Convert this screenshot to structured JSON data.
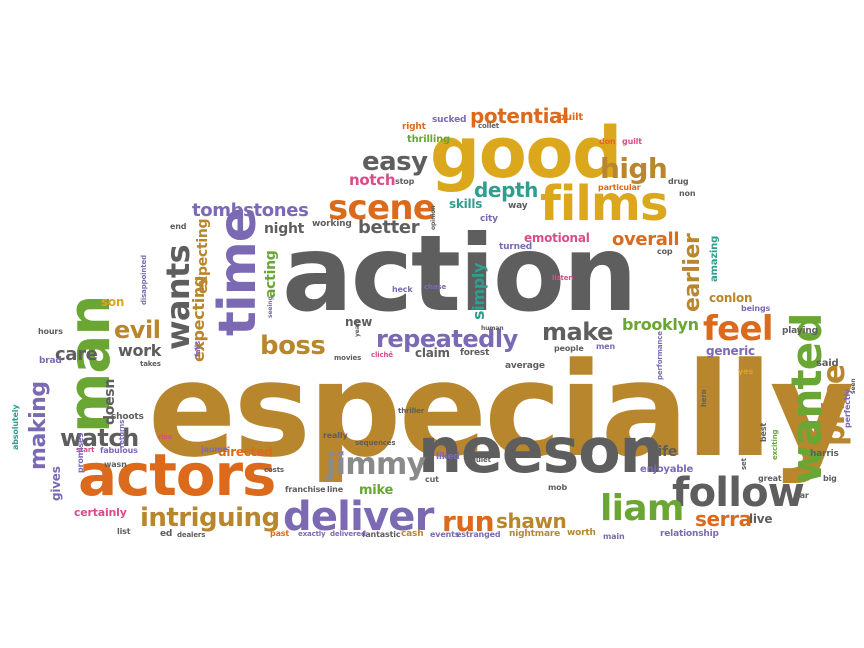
{
  "words": {
    "especially": "especially",
    "action": "action",
    "good": "good",
    "neeson": "neeson",
    "actors": "actors",
    "films": "films",
    "man": "man",
    "time": "time",
    "wanted": "wanted",
    "deliver": "deliver",
    "follow": "follow",
    "scene": "scene",
    "feel": "feel",
    "jimmy": "jimmy",
    "intriguing": "intriguing",
    "liam": "liam",
    "price": "price",
    "repeatedly": "repeatedly",
    "easy": "easy",
    "high": "high",
    "potential": "potential",
    "wants": "wants",
    "boss": "boss",
    "run": "run",
    "shawn": "shawn",
    "make": "make",
    "watch": "watch",
    "evil": "evil",
    "tombstones": "tombstones",
    "depth": "depth",
    "earlier": "earlier",
    "brooklyn": "brooklyn",
    "overall": "overall",
    "making": "making",
    "better": "better",
    "notch": "notch",
    "serra": "serra",
    "care": "care",
    "work": "work",
    "doesn": "doesn",
    "expecting1": "expecting",
    "expecting2": "expecting",
    "night": "night",
    "acting": "acting",
    "simply": "simply",
    "skills": "skills",
    "emotional": "emotional",
    "generic": "generic",
    "conlon": "conlon",
    "directed": "directed",
    "new": "new",
    "claim": "claim",
    "mike": "mike",
    "life": "life",
    "live": "live",
    "son": "son",
    "gives": "gives",
    "certainly": "certainly",
    "amazing": "amazing",
    "thrilling": "thrilling",
    "sucked": "sucked",
    "built": "built",
    "right": "right",
    "stop": "stop",
    "way": "way",
    "city": "city",
    "turned": "turned",
    "heck": "heck",
    "chase": "chase",
    "people": "people",
    "men": "men",
    "hero": "hero",
    "playing": "playing",
    "said": "said",
    "perfectly": "perfectly",
    "harris": "harris",
    "big": "big",
    "best": "best",
    "exciting": "exciting",
    "great": "great",
    "set": "set",
    "car": "car",
    "yes": "yes",
    "enjoyable": "enjoyable",
    "relationship": "relationship",
    "main": "main",
    "worth": "worth",
    "nightmare": "nightmare",
    "estranged": "estranged",
    "events": "events",
    "cash": "cash",
    "fantastic": "fantastic",
    "delivered": "delivered",
    "exactly": "exactly",
    "past": "past",
    "dealers": "dealers",
    "ed": "ed",
    "list": "list",
    "franchise": "franchise",
    "line": "line",
    "cut": "cut",
    "mob": "mob",
    "liked": "liked",
    "quiet": "quiet",
    "thriller": "thriller",
    "really": "really",
    "sequences": "sequences",
    "jaume": "jaume",
    "rise": "rise",
    "start": "start",
    "shoots": "shoots",
    "fabulous": "fabulous",
    "returns": "returns",
    "promises": "promises",
    "absolutely": "absolutely",
    "brad": "brad",
    "hours": "hours",
    "takes": "takes",
    "falls": "falls",
    "movies": "movies",
    "cliche": "clichê",
    "years": "years",
    "forest": "forest",
    "human": "human",
    "average": "average",
    "seeing": "seeing",
    "working": "working",
    "end": "end",
    "disappointed": "disappointed",
    "wasn": "wasn",
    "costs": "costs",
    "opinion": "opinion",
    "listen": "listen",
    "cop": "cop",
    "non": "non",
    "particular": "particular",
    "drug": "drug",
    "guilt": "guilt",
    "don": "don",
    "collet": "collet",
    "performance": "performance",
    "beings": "beings",
    "seen": "seen"
  },
  "colors": {
    "gray": "#5e5e5e",
    "gold": "#b8862d",
    "orange": "#dc6a1c",
    "purple": "#7b6ab3",
    "green": "#6aa633",
    "teal": "#2f9e8e",
    "pink": "#d94c8a",
    "yellow": "#dba81d"
  }
}
